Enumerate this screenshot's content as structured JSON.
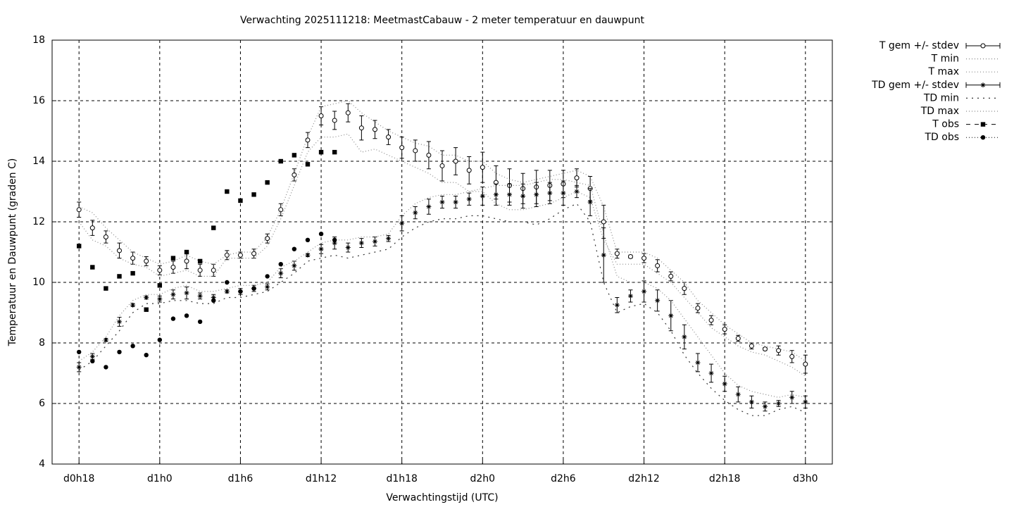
{
  "chart_data": {
    "type": "line",
    "title": "Verwachting 2025111218: MeetmastCabauw - 2 meter temperatuur en dauwpunt",
    "x_label": "Verwachtingstijd (UTC)",
    "y_label": "Temperatuur en Dauwpunt (graden C)",
    "xlim": [
      16,
      74
    ],
    "xticks": [
      {
        "value": 18,
        "label": "d0h18"
      },
      {
        "value": 24,
        "label": "d1h0"
      },
      {
        "value": 30,
        "label": "d1h6"
      },
      {
        "value": 36,
        "label": "d1h12"
      },
      {
        "value": 42,
        "label": "d1h18"
      },
      {
        "value": 48,
        "label": "d2h0"
      },
      {
        "value": 54,
        "label": "d2h6"
      },
      {
        "value": 60,
        "label": "d2h12"
      },
      {
        "value": 66,
        "label": "d2h18"
      },
      {
        "value": 72,
        "label": "d3h0"
      }
    ],
    "ylim": [
      4,
      18
    ],
    "yticks": [
      4,
      6,
      8,
      10,
      12,
      14,
      16,
      18
    ],
    "grid": true,
    "legend": "outside-right",
    "x": [
      18,
      19,
      20,
      21,
      22,
      23,
      24,
      25,
      26,
      27,
      28,
      29,
      30,
      31,
      32,
      33,
      34,
      35,
      36,
      37,
      38,
      39,
      40,
      41,
      42,
      43,
      44,
      45,
      46,
      47,
      48,
      49,
      50,
      51,
      52,
      53,
      54,
      55,
      56,
      57,
      58,
      59,
      60,
      61,
      62,
      63,
      64,
      65,
      66,
      67,
      68,
      69,
      70,
      71,
      72
    ],
    "series": [
      {
        "name": "T gem +/- stdev",
        "color": "#000000",
        "style": "errorbars",
        "point": "open-circle",
        "values": [
          12.4,
          11.8,
          11.5,
          11.05,
          10.8,
          10.7,
          10.4,
          10.5,
          10.7,
          10.4,
          10.4,
          10.9,
          10.9,
          10.95,
          11.45,
          12.4,
          13.55,
          14.7,
          15.5,
          15.35,
          15.6,
          15.1,
          15.05,
          14.8,
          14.45,
          14.35,
          14.2,
          13.85,
          14.0,
          13.7,
          13.8,
          13.3,
          13.2,
          13.1,
          13.15,
          13.2,
          13.25,
          13.45,
          13.1,
          12.0,
          10.95,
          10.85,
          10.8,
          10.55,
          10.2,
          9.8,
          9.15,
          8.75,
          8.45,
          8.15,
          7.9,
          7.8,
          7.75,
          7.55,
          7.3
        ],
        "errors": [
          0.25,
          0.25,
          0.2,
          0.25,
          0.2,
          0.15,
          0.15,
          0.2,
          0.25,
          0.2,
          0.2,
          0.15,
          0.1,
          0.15,
          0.15,
          0.2,
          0.2,
          0.25,
          0.3,
          0.3,
          0.3,
          0.4,
          0.3,
          0.25,
          0.35,
          0.35,
          0.45,
          0.5,
          0.45,
          0.45,
          0.5,
          0.55,
          0.55,
          0.5,
          0.55,
          0.5,
          0.45,
          0.3,
          0.4,
          0.55,
          0.15,
          0.05,
          0.15,
          0.2,
          0.15,
          0.2,
          0.15,
          0.15,
          0.15,
          0.1,
          0.1,
          0.05,
          0.15,
          0.2,
          0.3
        ]
      },
      {
        "name": "T min",
        "color": "#888888",
        "style": "dotted",
        "values": [
          12.0,
          11.4,
          11.2,
          10.8,
          10.6,
          10.5,
          10.2,
          10.3,
          10.4,
          10.2,
          10.2,
          10.8,
          10.8,
          10.8,
          11.2,
          12.1,
          13.2,
          14.3,
          14.8,
          14.8,
          14.9,
          14.3,
          14.4,
          14.2,
          14.0,
          13.8,
          13.6,
          13.3,
          13.3,
          13.0,
          13.0,
          12.6,
          12.4,
          12.4,
          12.5,
          12.6,
          12.8,
          13.0,
          12.8,
          11.4,
          10.6,
          10.6,
          10.6,
          10.3,
          10.0,
          9.5,
          9.0,
          8.5,
          8.2,
          7.9,
          7.7,
          7.6,
          7.4,
          7.2,
          6.9
        ]
      },
      {
        "name": "T max",
        "color": "#888888",
        "style": "dotted",
        "values": [
          12.5,
          12.3,
          11.8,
          11.4,
          11.0,
          10.8,
          10.6,
          10.7,
          10.9,
          10.7,
          10.6,
          10.9,
          11.0,
          11.0,
          11.5,
          12.4,
          13.6,
          14.8,
          15.8,
          15.9,
          16.0,
          15.6,
          15.3,
          15.0,
          14.8,
          14.6,
          14.5,
          14.2,
          14.2,
          14.0,
          14.0,
          13.6,
          13.4,
          13.3,
          13.4,
          13.5,
          13.6,
          13.7,
          13.5,
          12.5,
          11.0,
          11.0,
          11.0,
          10.8,
          10.4,
          10.0,
          9.4,
          9.0,
          8.6,
          8.3,
          8.0,
          7.9,
          7.8,
          7.7,
          7.4
        ]
      },
      {
        "name": "TD gem +/- stdev",
        "color": "#000000",
        "style": "errorbars",
        "point": "asterisk",
        "values": [
          7.2,
          7.55,
          8.1,
          8.7,
          9.25,
          9.5,
          9.45,
          9.6,
          9.65,
          9.55,
          9.5,
          9.7,
          9.7,
          9.8,
          9.85,
          10.3,
          10.55,
          10.9,
          11.1,
          11.3,
          11.15,
          11.3,
          11.35,
          11.45,
          11.95,
          12.3,
          12.5,
          12.65,
          12.65,
          12.75,
          12.85,
          12.9,
          12.9,
          12.85,
          12.9,
          12.95,
          12.95,
          13.0,
          12.65,
          10.9,
          9.25,
          9.55,
          9.7,
          9.4,
          8.9,
          8.2,
          7.35,
          7.0,
          6.65,
          6.3,
          6.05,
          5.9,
          6.0,
          6.2,
          6.05
        ],
        "errors": [
          0.15,
          0.1,
          0.05,
          0.15,
          0.05,
          0.05,
          0.1,
          0.15,
          0.2,
          0.1,
          0.1,
          0.05,
          0.1,
          0.1,
          0.1,
          0.15,
          0.15,
          0.05,
          0.15,
          0.2,
          0.15,
          0.15,
          0.15,
          0.1,
          0.25,
          0.2,
          0.25,
          0.2,
          0.2,
          0.2,
          0.3,
          0.35,
          0.35,
          0.4,
          0.4,
          0.35,
          0.4,
          0.2,
          0.45,
          0.9,
          0.25,
          0.2,
          0.35,
          0.35,
          0.5,
          0.4,
          0.3,
          0.3,
          0.25,
          0.25,
          0.2,
          0.15,
          0.1,
          0.2,
          0.2
        ]
      },
      {
        "name": "TD min",
        "color": "#333333",
        "style": "sparse-dotted",
        "values": [
          7.1,
          7.4,
          7.9,
          8.4,
          9.0,
          9.3,
          9.3,
          9.4,
          9.4,
          9.3,
          9.3,
          9.5,
          9.5,
          9.6,
          9.7,
          10.0,
          10.3,
          10.7,
          10.8,
          10.9,
          10.8,
          10.9,
          11.0,
          11.1,
          11.5,
          11.8,
          12.0,
          12.1,
          12.1,
          12.2,
          12.2,
          12.1,
          12.0,
          12.0,
          11.9,
          12.1,
          12.4,
          12.6,
          12.0,
          10.0,
          9.0,
          9.2,
          9.3,
          9.0,
          8.4,
          7.6,
          7.0,
          6.5,
          6.1,
          5.8,
          5.6,
          5.6,
          5.8,
          5.9,
          5.7
        ]
      },
      {
        "name": "TD max",
        "color": "#888888",
        "style": "dotted",
        "values": [
          7.4,
          7.7,
          8.2,
          8.9,
          9.4,
          9.6,
          9.6,
          9.8,
          9.9,
          9.7,
          9.7,
          9.8,
          9.9,
          9.9,
          10.0,
          10.5,
          10.7,
          11.0,
          11.3,
          11.4,
          11.4,
          11.5,
          11.5,
          11.6,
          12.2,
          12.6,
          12.8,
          12.9,
          12.9,
          13.0,
          13.1,
          13.2,
          13.2,
          13.2,
          13.3,
          13.4,
          13.4,
          13.3,
          13.2,
          11.6,
          10.2,
          10.0,
          10.0,
          9.8,
          9.4,
          8.8,
          8.2,
          7.6,
          7.0,
          6.6,
          6.4,
          6.3,
          6.2,
          6.3,
          6.2
        ]
      },
      {
        "name": "T obs",
        "color": "#000000",
        "style": "points",
        "point": "filled-square",
        "values": [
          11.2,
          10.5,
          9.8,
          10.2,
          10.3,
          9.1,
          9.9,
          10.8,
          11.0,
          10.7,
          11.8,
          13.0,
          12.7,
          12.9,
          13.3,
          14.0,
          14.2,
          13.9,
          14.3,
          14.3,
          null,
          null,
          null,
          null,
          null,
          null,
          null,
          null,
          null,
          null,
          null,
          null,
          null,
          null,
          null,
          null,
          null,
          null,
          null,
          null,
          null,
          null,
          null,
          null,
          null,
          null,
          null,
          null,
          null,
          null,
          null,
          null,
          null,
          null,
          null
        ]
      },
      {
        "name": "TD obs",
        "color": "#000000",
        "style": "points",
        "point": "filled-circle",
        "values": [
          7.7,
          7.4,
          7.2,
          7.7,
          7.9,
          7.6,
          8.1,
          8.8,
          8.9,
          8.7,
          9.4,
          10.0,
          9.7,
          9.8,
          10.2,
          10.6,
          11.1,
          11.4,
          11.6,
          11.4,
          null,
          null,
          null,
          null,
          null,
          null,
          null,
          null,
          null,
          null,
          null,
          null,
          null,
          null,
          null,
          null,
          null,
          null,
          null,
          null,
          null,
          null,
          null,
          null,
          null,
          null,
          null,
          null,
          null,
          null,
          null,
          null,
          null,
          null,
          null
        ]
      }
    ]
  }
}
